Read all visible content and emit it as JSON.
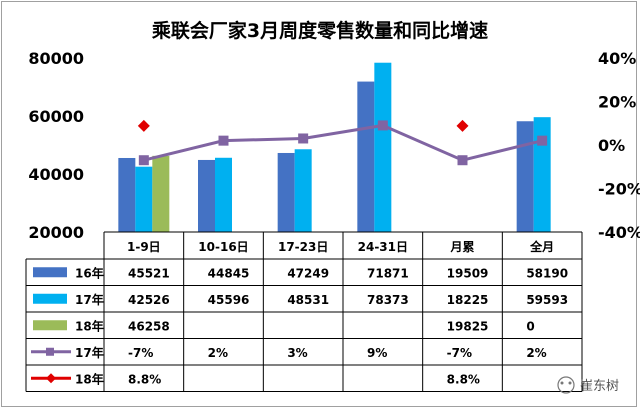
{
  "chart_data": {
    "type": "bar",
    "title": "乘联会厂家3月周度零售数量和同比增速",
    "categories": [
      "1-9日",
      "10-16日",
      "17-23日",
      "24-31日",
      "月累",
      "全月"
    ],
    "ylim_left": [
      20000,
      80000
    ],
    "yticks_left": [
      "20000",
      "40000",
      "60000",
      "80000"
    ],
    "ylim_right": [
      -40,
      40
    ],
    "yticks_right": [
      "-40%",
      "-20%",
      "0%",
      "20%",
      "40%"
    ],
    "series": [
      {
        "name": "16年",
        "kind": "bar",
        "color": "#4472c4",
        "values": [
          45521,
          44845,
          47249,
          71871,
          19509,
          58190
        ],
        "labels": [
          "45521",
          "44845",
          "47249",
          "71871",
          "19509",
          "58190"
        ]
      },
      {
        "name": "17年",
        "kind": "bar",
        "color": "#00b0f0",
        "values": [
          42526,
          45596,
          48531,
          78373,
          18225,
          59593
        ],
        "labels": [
          "42526",
          "45596",
          "48531",
          "78373",
          "18225",
          "59593"
        ]
      },
      {
        "name": "18年",
        "kind": "bar",
        "color": "#9bbb59",
        "values": [
          46258,
          null,
          null,
          null,
          19825,
          0
        ],
        "labels": [
          "46258",
          "",
          "",
          "",
          "19825",
          "0"
        ]
      },
      {
        "name": "17年",
        "kind": "line",
        "color": "#8064a2",
        "values": [
          -7,
          2,
          3,
          9,
          -7,
          2
        ],
        "labels": [
          "-7%",
          "2%",
          "3%",
          "9%",
          "-7%",
          "2%"
        ]
      },
      {
        "name": "18年",
        "kind": "marker",
        "color": "#e00000",
        "values": [
          8.8,
          null,
          null,
          null,
          8.8,
          null
        ],
        "labels": [
          "8.8%",
          "",
          "",
          "",
          "8.8%",
          ""
        ]
      }
    ]
  },
  "watermark": "崔东树"
}
